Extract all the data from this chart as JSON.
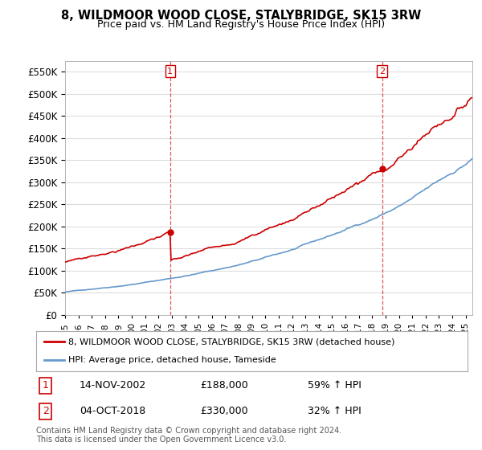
{
  "title": "8, WILDMOOR WOOD CLOSE, STALYBRIDGE, SK15 3RW",
  "subtitle": "Price paid vs. HM Land Registry's House Price Index (HPI)",
  "ylim": [
    0,
    575000
  ],
  "yticks": [
    0,
    50000,
    100000,
    150000,
    200000,
    250000,
    300000,
    350000,
    400000,
    450000,
    500000,
    550000
  ],
  "xlim_start": 1995.0,
  "xlim_end": 2025.5,
  "sale1_date": 2002.87,
  "sale1_price": 188000,
  "sale1_label": "1",
  "sale2_date": 2018.75,
  "sale2_price": 330000,
  "sale2_label": "2",
  "line_color_house": "#cc0000",
  "line_color_hpi": "#6699cc",
  "dashed_line_color": "#cc0000",
  "legend_house": "8, WILDMOOR WOOD CLOSE, STALYBRIDGE, SK15 3RW (detached house)",
  "legend_hpi": "HPI: Average price, detached house, Tameside",
  "annotation1_date": "14-NOV-2002",
  "annotation1_price": "£188,000",
  "annotation1_pct": "59% ↑ HPI",
  "annotation2_date": "04-OCT-2018",
  "annotation2_price": "£330,000",
  "annotation2_pct": "32% ↑ HPI",
  "footer": "Contains HM Land Registry data © Crown copyright and database right 2024.\nThis data is licensed under the Open Government Licence v3.0.",
  "background_color": "#ffffff",
  "grid_color": "#dddddd"
}
